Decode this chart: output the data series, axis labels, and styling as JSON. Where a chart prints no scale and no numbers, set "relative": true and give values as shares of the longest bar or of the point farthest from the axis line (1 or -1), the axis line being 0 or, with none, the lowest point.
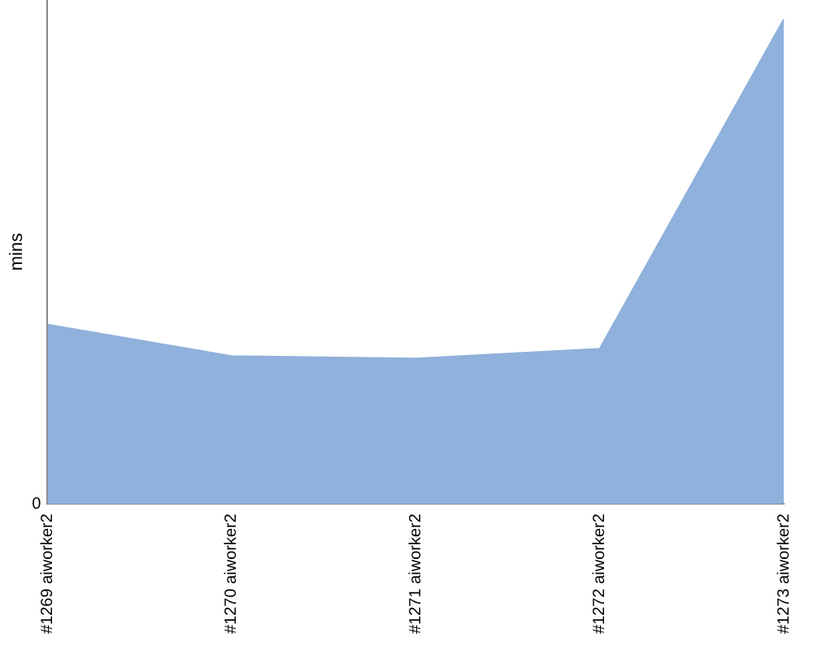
{
  "chart_data": {
    "type": "area",
    "ylabel": "mins",
    "relative": true,
    "categories": [
      "#1269 aiworker2",
      "#1270 aiworker2",
      "#1271 aiworker2",
      "#1272 aiworker2",
      "#1273 aiworker2"
    ],
    "series": [
      {
        "color": "#8fb1db",
        "values": [
          0.37,
          0.305,
          0.3,
          0.32,
          1
        ]
      }
    ],
    "annotations": [
      "0"
    ],
    "grid": false,
    "legend": false
  }
}
